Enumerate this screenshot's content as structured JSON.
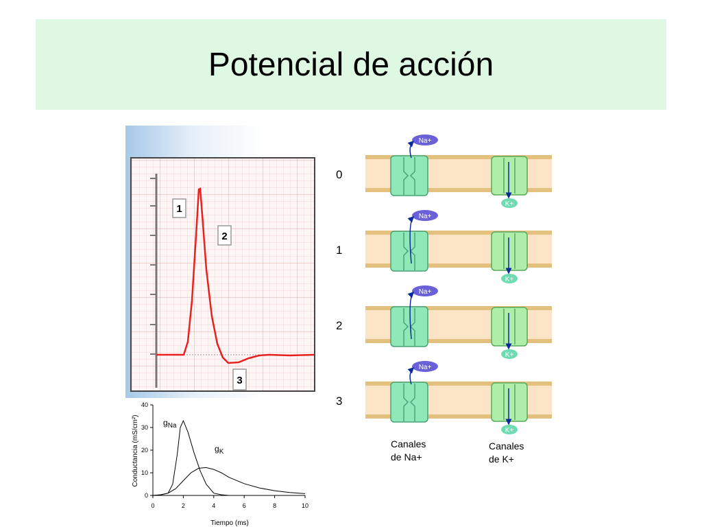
{
  "title": "Potencial de acción",
  "action_potential": {
    "labels": [
      "1",
      "2",
      "3"
    ]
  },
  "chart_data": {
    "type": "line",
    "title": "",
    "xlabel": "Tiempo (ms)",
    "ylabel": "Conductancia (mS/cm²)",
    "xlim": [
      0,
      10
    ],
    "ylim": [
      0,
      40
    ],
    "xticks": [
      0,
      2,
      4,
      6,
      8,
      10
    ],
    "yticks": [
      0,
      10,
      20,
      30,
      40
    ],
    "series": [
      {
        "name": "gNa",
        "sub": "Na",
        "x": [
          0,
          0.5,
          1,
          1.3,
          1.6,
          1.8,
          2.0,
          2.3,
          2.7,
          3.1,
          3.5,
          4.0,
          4.5,
          5,
          6,
          8,
          10
        ],
        "y": [
          0,
          0.2,
          1,
          5,
          18,
          30,
          33,
          28,
          19,
          11,
          5,
          1,
          0.3,
          0,
          0,
          0,
          0
        ]
      },
      {
        "name": "gK",
        "sub": "K",
        "x": [
          0,
          0.5,
          1,
          1.5,
          2,
          2.5,
          3,
          3.5,
          4,
          4.5,
          5,
          6,
          7,
          8,
          9,
          10
        ],
        "y": [
          0,
          0.3,
          1,
          3,
          6.5,
          10,
          12,
          12.3,
          11.5,
          10,
          8,
          5.2,
          3.3,
          2.1,
          1.3,
          0.8
        ]
      }
    ]
  },
  "channels": {
    "rows": [
      "0",
      "1",
      "2",
      "3"
    ],
    "na_ion": "Na+",
    "k_ion": "K+",
    "na_caption_1": "Canales",
    "na_caption_2": "de Na+",
    "k_caption_1": "Canales",
    "k_caption_2": "de K+"
  }
}
